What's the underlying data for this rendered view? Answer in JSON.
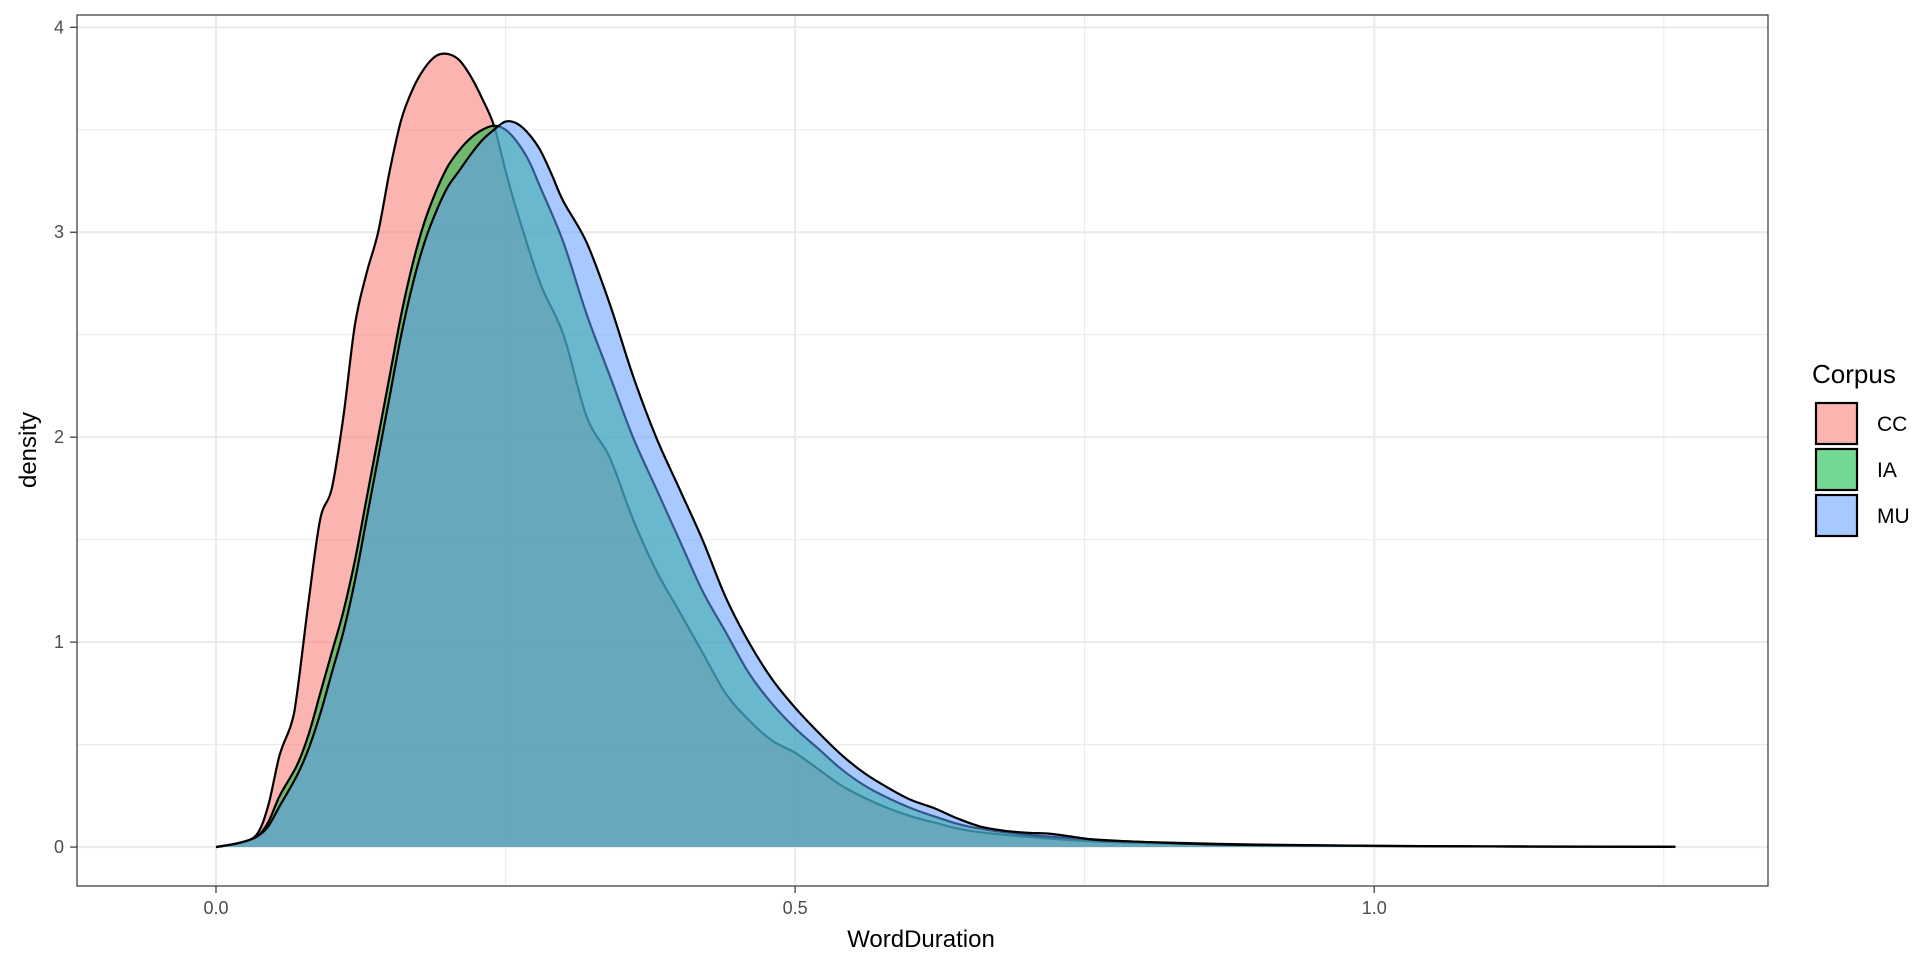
{
  "chart_data": {
    "type": "area",
    "xlabel": "WordDuration",
    "ylabel": "density",
    "xlim": [
      -0.12,
      1.34
    ],
    "ylim": [
      -0.19,
      4.06
    ],
    "x_ticks": [
      0.0,
      0.5,
      1.0
    ],
    "x_tick_labels": [
      "0.0",
      "0.5",
      "1.0"
    ],
    "y_ticks": [
      0,
      1,
      2,
      3,
      4
    ],
    "y_tick_labels": [
      "0",
      "1",
      "2",
      "3",
      "4"
    ],
    "grid": true,
    "legend": {
      "title": "Corpus",
      "position": "right",
      "entries": [
        "CC",
        "IA",
        "MU"
      ]
    },
    "series": [
      {
        "name": "CC",
        "color": "#F8766D",
        "points": [
          [
            0.0,
            0.0
          ],
          [
            0.02,
            0.02
          ],
          [
            0.035,
            0.06
          ],
          [
            0.045,
            0.2
          ],
          [
            0.055,
            0.45
          ],
          [
            0.065,
            0.6
          ],
          [
            0.07,
            0.75
          ],
          [
            0.08,
            1.2
          ],
          [
            0.09,
            1.6
          ],
          [
            0.1,
            1.75
          ],
          [
            0.11,
            2.1
          ],
          [
            0.12,
            2.55
          ],
          [
            0.13,
            2.8
          ],
          [
            0.14,
            3.0
          ],
          [
            0.15,
            3.3
          ],
          [
            0.16,
            3.55
          ],
          [
            0.17,
            3.7
          ],
          [
            0.18,
            3.8
          ],
          [
            0.19,
            3.86
          ],
          [
            0.2,
            3.87
          ],
          [
            0.21,
            3.84
          ],
          [
            0.22,
            3.76
          ],
          [
            0.23,
            3.65
          ],
          [
            0.24,
            3.52
          ],
          [
            0.25,
            3.3
          ],
          [
            0.26,
            3.1
          ],
          [
            0.28,
            2.75
          ],
          [
            0.3,
            2.5
          ],
          [
            0.32,
            2.1
          ],
          [
            0.34,
            1.9
          ],
          [
            0.36,
            1.6
          ],
          [
            0.38,
            1.35
          ],
          [
            0.4,
            1.15
          ],
          [
            0.42,
            0.95
          ],
          [
            0.44,
            0.75
          ],
          [
            0.46,
            0.62
          ],
          [
            0.48,
            0.52
          ],
          [
            0.5,
            0.46
          ],
          [
            0.52,
            0.38
          ],
          [
            0.54,
            0.3
          ],
          [
            0.56,
            0.24
          ],
          [
            0.58,
            0.19
          ],
          [
            0.6,
            0.15
          ],
          [
            0.62,
            0.12
          ],
          [
            0.65,
            0.08
          ],
          [
            0.7,
            0.05
          ],
          [
            0.75,
            0.03
          ],
          [
            0.8,
            0.02
          ],
          [
            0.9,
            0.01
          ],
          [
            1.0,
            0.005
          ],
          [
            1.1,
            0.003
          ],
          [
            1.2,
            0.002
          ],
          [
            1.26,
            0.001
          ]
        ]
      },
      {
        "name": "IA",
        "color": "#00BA38",
        "points": [
          [
            0.0,
            0.0
          ],
          [
            0.02,
            0.02
          ],
          [
            0.035,
            0.05
          ],
          [
            0.045,
            0.12
          ],
          [
            0.055,
            0.25
          ],
          [
            0.07,
            0.4
          ],
          [
            0.08,
            0.55
          ],
          [
            0.09,
            0.75
          ],
          [
            0.1,
            0.95
          ],
          [
            0.11,
            1.15
          ],
          [
            0.12,
            1.4
          ],
          [
            0.13,
            1.7
          ],
          [
            0.14,
            2.0
          ],
          [
            0.15,
            2.3
          ],
          [
            0.16,
            2.6
          ],
          [
            0.17,
            2.85
          ],
          [
            0.18,
            3.05
          ],
          [
            0.19,
            3.2
          ],
          [
            0.2,
            3.32
          ],
          [
            0.21,
            3.4
          ],
          [
            0.22,
            3.46
          ],
          [
            0.23,
            3.5
          ],
          [
            0.24,
            3.52
          ],
          [
            0.25,
            3.5
          ],
          [
            0.26,
            3.44
          ],
          [
            0.27,
            3.35
          ],
          [
            0.28,
            3.22
          ],
          [
            0.3,
            2.95
          ],
          [
            0.32,
            2.6
          ],
          [
            0.34,
            2.3
          ],
          [
            0.36,
            2.0
          ],
          [
            0.38,
            1.75
          ],
          [
            0.4,
            1.5
          ],
          [
            0.42,
            1.25
          ],
          [
            0.44,
            1.05
          ],
          [
            0.46,
            0.85
          ],
          [
            0.48,
            0.7
          ],
          [
            0.5,
            0.58
          ],
          [
            0.52,
            0.48
          ],
          [
            0.54,
            0.38
          ],
          [
            0.56,
            0.3
          ],
          [
            0.58,
            0.24
          ],
          [
            0.6,
            0.19
          ],
          [
            0.62,
            0.15
          ],
          [
            0.65,
            0.1
          ],
          [
            0.7,
            0.06
          ],
          [
            0.75,
            0.04
          ],
          [
            0.8,
            0.025
          ],
          [
            0.9,
            0.012
          ],
          [
            1.0,
            0.006
          ],
          [
            1.1,
            0.003
          ],
          [
            1.2,
            0.002
          ],
          [
            1.26,
            0.001
          ]
        ]
      },
      {
        "name": "MU",
        "color": "#619CFF",
        "points": [
          [
            0.0,
            0.0
          ],
          [
            0.02,
            0.02
          ],
          [
            0.035,
            0.05
          ],
          [
            0.045,
            0.1
          ],
          [
            0.055,
            0.2
          ],
          [
            0.07,
            0.35
          ],
          [
            0.08,
            0.48
          ],
          [
            0.09,
            0.65
          ],
          [
            0.1,
            0.85
          ],
          [
            0.11,
            1.05
          ],
          [
            0.12,
            1.3
          ],
          [
            0.13,
            1.6
          ],
          [
            0.14,
            1.9
          ],
          [
            0.15,
            2.2
          ],
          [
            0.16,
            2.5
          ],
          [
            0.17,
            2.75
          ],
          [
            0.18,
            2.95
          ],
          [
            0.19,
            3.1
          ],
          [
            0.2,
            3.22
          ],
          [
            0.21,
            3.3
          ],
          [
            0.22,
            3.38
          ],
          [
            0.23,
            3.45
          ],
          [
            0.24,
            3.5
          ],
          [
            0.25,
            3.54
          ],
          [
            0.26,
            3.53
          ],
          [
            0.27,
            3.48
          ],
          [
            0.28,
            3.4
          ],
          [
            0.29,
            3.28
          ],
          [
            0.3,
            3.15
          ],
          [
            0.32,
            2.95
          ],
          [
            0.34,
            2.65
          ],
          [
            0.36,
            2.3
          ],
          [
            0.38,
            2.0
          ],
          [
            0.4,
            1.75
          ],
          [
            0.42,
            1.5
          ],
          [
            0.44,
            1.22
          ],
          [
            0.46,
            1.0
          ],
          [
            0.48,
            0.82
          ],
          [
            0.5,
            0.68
          ],
          [
            0.52,
            0.56
          ],
          [
            0.54,
            0.45
          ],
          [
            0.56,
            0.36
          ],
          [
            0.58,
            0.29
          ],
          [
            0.6,
            0.23
          ],
          [
            0.62,
            0.19
          ],
          [
            0.64,
            0.14
          ],
          [
            0.66,
            0.1
          ],
          [
            0.68,
            0.08
          ],
          [
            0.7,
            0.07
          ],
          [
            0.72,
            0.065
          ],
          [
            0.74,
            0.05
          ],
          [
            0.76,
            0.035
          ],
          [
            0.8,
            0.025
          ],
          [
            0.85,
            0.015
          ],
          [
            0.9,
            0.01
          ],
          [
            1.0,
            0.006
          ],
          [
            1.1,
            0.003
          ],
          [
            1.2,
            0.002
          ],
          [
            1.26,
            0.001
          ]
        ]
      }
    ]
  }
}
